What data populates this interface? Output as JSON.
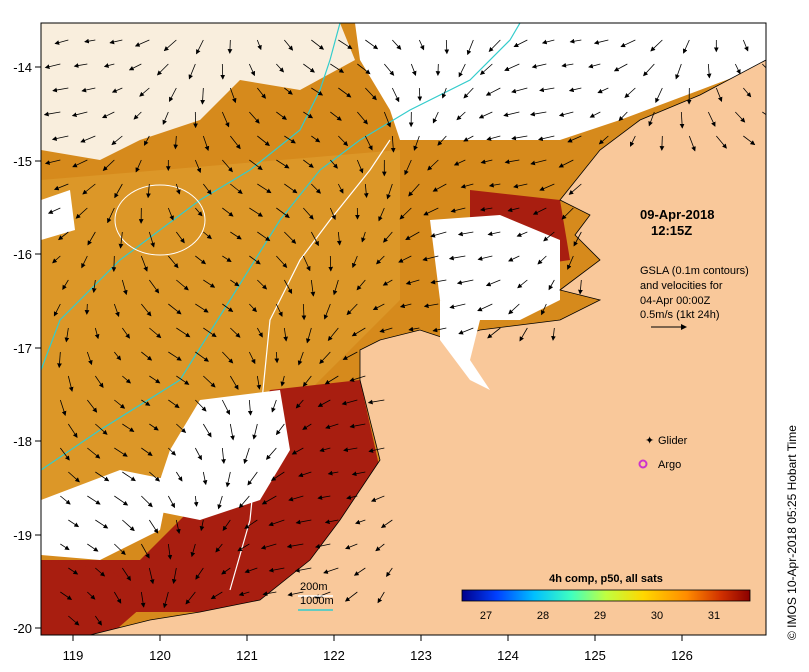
{
  "map": {
    "timestamp_line1": "09-Apr-2018",
    "timestamp_line2": "12:15Z",
    "gsla_note": [
      "GSLA (0.1m contours)",
      "and velocities for",
      "04-Apr 00:00Z",
      "0.5m/s (1kt 24h)"
    ],
    "legend_glider": "Glider",
    "legend_argo": "Argo",
    "depth_200": "200m",
    "depth_1000": "1000m",
    "colorbar_title": "4h comp, p50, all sats",
    "colorbar_ticks": [
      "27",
      "28",
      "29",
      "30",
      "31"
    ],
    "side_credit": "© IMOS 10-Apr-2018 05:25 Hobart Time",
    "lon_ticks": [
      "119",
      "120",
      "121",
      "122",
      "123",
      "124",
      "125",
      "126"
    ],
    "lat_ticks": [
      "-14",
      "-15",
      "-16",
      "-17",
      "-18",
      "-19",
      "-20"
    ],
    "colors": {
      "land": "#f9c89a",
      "sst_warm": "#d9881a",
      "sst_hot": "#a3170e",
      "glider": "#cc33cc",
      "argo": "#cc33cc",
      "isobath_200": "#ffffff",
      "isobath_1000": "#33cccc"
    }
  },
  "colorbar_stops": [
    "#00008b",
    "#0040ff",
    "#00bfff",
    "#40ffbf",
    "#c0ff40",
    "#ffd700",
    "#ff8c00",
    "#e03000",
    "#8b0000"
  ]
}
